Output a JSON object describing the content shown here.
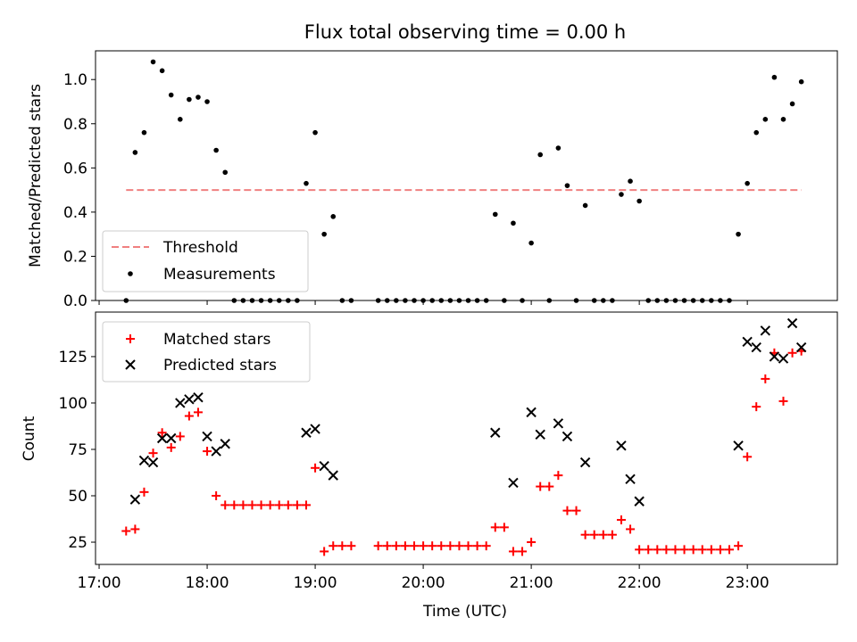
{
  "figure": {
    "title": "Flux total observing time = 0.00 h",
    "xlabel": "Time (UTC)"
  },
  "colors": {
    "threshold": "#f08080",
    "measurements": "#000000",
    "matched": "#ff0000",
    "predicted": "#000000"
  },
  "chart_data": [
    {
      "type": "scatter",
      "ylabel": "Matched/Predicted stars",
      "xlim": [
        "16:58",
        "23:50"
      ],
      "ylim": [
        0,
        1.13
      ],
      "x_ticks": [
        "17:00",
        "18:00",
        "19:00",
        "20:00",
        "21:00",
        "22:00",
        "23:00"
      ],
      "y_ticks": [
        "0.0",
        "0.2",
        "0.4",
        "0.6",
        "0.8",
        "1.0"
      ],
      "legend_position": "lower-left",
      "threshold": {
        "name": "Threshold",
        "y": 0.5,
        "x_start": "17:15",
        "x_end": "23:30"
      },
      "series": [
        {
          "name": "Measurements",
          "points": [
            [
              "17:15",
              0.0
            ],
            [
              "17:20",
              0.67
            ],
            [
              "17:25",
              0.76
            ],
            [
              "17:30",
              1.08
            ],
            [
              "17:35",
              1.04
            ],
            [
              "17:40",
              0.93
            ],
            [
              "17:45",
              0.82
            ],
            [
              "17:50",
              0.91
            ],
            [
              "17:55",
              0.92
            ],
            [
              "18:00",
              0.9
            ],
            [
              "18:05",
              0.68
            ],
            [
              "18:10",
              0.58
            ],
            [
              "18:15",
              0.0
            ],
            [
              "18:20",
              0.0
            ],
            [
              "18:25",
              0.0
            ],
            [
              "18:30",
              0.0
            ],
            [
              "18:35",
              0.0
            ],
            [
              "18:40",
              0.0
            ],
            [
              "18:45",
              0.0
            ],
            [
              "18:50",
              0.0
            ],
            [
              "18:55",
              0.53
            ],
            [
              "19:00",
              0.76
            ],
            [
              "19:05",
              0.3
            ],
            [
              "19:10",
              0.38
            ],
            [
              "19:15",
              0.0
            ],
            [
              "19:20",
              0.0
            ],
            [
              "19:35",
              0.0
            ],
            [
              "19:40",
              0.0
            ],
            [
              "19:45",
              0.0
            ],
            [
              "19:50",
              0.0
            ],
            [
              "19:55",
              0.0
            ],
            [
              "20:00",
              0.0
            ],
            [
              "20:05",
              0.0
            ],
            [
              "20:10",
              0.0
            ],
            [
              "20:15",
              0.0
            ],
            [
              "20:20",
              0.0
            ],
            [
              "20:25",
              0.0
            ],
            [
              "20:30",
              0.0
            ],
            [
              "20:35",
              0.0
            ],
            [
              "20:40",
              0.39
            ],
            [
              "20:45",
              0.0
            ],
            [
              "20:50",
              0.35
            ],
            [
              "20:55",
              0.0
            ],
            [
              "21:00",
              0.26
            ],
            [
              "21:05",
              0.66
            ],
            [
              "21:10",
              0.0
            ],
            [
              "21:15",
              0.69
            ],
            [
              "21:20",
              0.52
            ],
            [
              "21:25",
              0.0
            ],
            [
              "21:30",
              0.43
            ],
            [
              "21:35",
              0.0
            ],
            [
              "21:40",
              0.0
            ],
            [
              "21:45",
              0.0
            ],
            [
              "21:50",
              0.48
            ],
            [
              "21:55",
              0.54
            ],
            [
              "22:00",
              0.45
            ],
            [
              "22:05",
              0.0
            ],
            [
              "22:10",
              0.0
            ],
            [
              "22:15",
              0.0
            ],
            [
              "22:20",
              0.0
            ],
            [
              "22:25",
              0.0
            ],
            [
              "22:30",
              0.0
            ],
            [
              "22:35",
              0.0
            ],
            [
              "22:40",
              0.0
            ],
            [
              "22:45",
              0.0
            ],
            [
              "22:50",
              0.0
            ],
            [
              "22:55",
              0.3
            ],
            [
              "23:00",
              0.53
            ],
            [
              "23:05",
              0.76
            ],
            [
              "23:10",
              0.82
            ],
            [
              "23:15",
              1.01
            ],
            [
              "23:20",
              0.82
            ],
            [
              "23:25",
              0.89
            ],
            [
              "23:30",
              0.99
            ]
          ]
        }
      ]
    },
    {
      "type": "scatter",
      "ylabel": "Count",
      "xlim": [
        "16:58",
        "23:50"
      ],
      "ylim": [
        13,
        149
      ],
      "x_ticks": [
        "17:00",
        "18:00",
        "19:00",
        "20:00",
        "21:00",
        "22:00",
        "23:00"
      ],
      "y_ticks": [
        "25",
        "50",
        "75",
        "100",
        "125"
      ],
      "legend_position": "upper-left",
      "series": [
        {
          "name": "Matched stars",
          "marker": "+",
          "points": [
            [
              "17:15",
              31
            ],
            [
              "17:20",
              32
            ],
            [
              "17:25",
              52
            ],
            [
              "17:30",
              73
            ],
            [
              "17:35",
              84
            ],
            [
              "17:40",
              76
            ],
            [
              "17:45",
              82
            ],
            [
              "17:50",
              93
            ],
            [
              "17:55",
              95
            ],
            [
              "18:00",
              74
            ],
            [
              "18:05",
              50
            ],
            [
              "18:10",
              45
            ],
            [
              "18:15",
              45
            ],
            [
              "18:20",
              45
            ],
            [
              "18:25",
              45
            ],
            [
              "18:30",
              45
            ],
            [
              "18:35",
              45
            ],
            [
              "18:40",
              45
            ],
            [
              "18:45",
              45
            ],
            [
              "18:50",
              45
            ],
            [
              "18:55",
              45
            ],
            [
              "19:00",
              65
            ],
            [
              "19:05",
              20
            ],
            [
              "19:10",
              23
            ],
            [
              "19:15",
              23
            ],
            [
              "19:20",
              23
            ],
            [
              "19:35",
              23
            ],
            [
              "19:40",
              23
            ],
            [
              "19:45",
              23
            ],
            [
              "19:50",
              23
            ],
            [
              "19:55",
              23
            ],
            [
              "20:00",
              23
            ],
            [
              "20:05",
              23
            ],
            [
              "20:10",
              23
            ],
            [
              "20:15",
              23
            ],
            [
              "20:20",
              23
            ],
            [
              "20:25",
              23
            ],
            [
              "20:30",
              23
            ],
            [
              "20:35",
              23
            ],
            [
              "20:40",
              33
            ],
            [
              "20:45",
              33
            ],
            [
              "20:50",
              20
            ],
            [
              "20:55",
              20
            ],
            [
              "21:00",
              25
            ],
            [
              "21:05",
              55
            ],
            [
              "21:10",
              55
            ],
            [
              "21:15",
              61
            ],
            [
              "21:20",
              42
            ],
            [
              "21:25",
              42
            ],
            [
              "21:30",
              29
            ],
            [
              "21:35",
              29
            ],
            [
              "21:40",
              29
            ],
            [
              "21:45",
              29
            ],
            [
              "21:50",
              37
            ],
            [
              "21:55",
              32
            ],
            [
              "22:00",
              21
            ],
            [
              "22:05",
              21
            ],
            [
              "22:10",
              21
            ],
            [
              "22:15",
              21
            ],
            [
              "22:20",
              21
            ],
            [
              "22:25",
              21
            ],
            [
              "22:30",
              21
            ],
            [
              "22:35",
              21
            ],
            [
              "22:40",
              21
            ],
            [
              "22:45",
              21
            ],
            [
              "22:50",
              21
            ],
            [
              "22:55",
              23
            ],
            [
              "23:00",
              71
            ],
            [
              "23:05",
              98
            ],
            [
              "23:10",
              113
            ],
            [
              "23:15",
              127
            ],
            [
              "23:20",
              101
            ],
            [
              "23:25",
              127
            ],
            [
              "23:30",
              128
            ]
          ]
        },
        {
          "name": "Predicted stars",
          "marker": "x",
          "points": [
            [
              "17:20",
              48
            ],
            [
              "17:25",
              69
            ],
            [
              "17:30",
              68
            ],
            [
              "17:35",
              81
            ],
            [
              "17:40",
              81
            ],
            [
              "17:45",
              100
            ],
            [
              "17:50",
              102
            ],
            [
              "17:55",
              103
            ],
            [
              "18:00",
              82
            ],
            [
              "18:05",
              74
            ],
            [
              "18:10",
              78
            ],
            [
              "18:55",
              84
            ],
            [
              "19:00",
              86
            ],
            [
              "19:05",
              66
            ],
            [
              "19:10",
              61
            ],
            [
              "20:40",
              84
            ],
            [
              "20:50",
              57
            ],
            [
              "21:00",
              95
            ],
            [
              "21:05",
              83
            ],
            [
              "21:15",
              89
            ],
            [
              "21:20",
              82
            ],
            [
              "21:30",
              68
            ],
            [
              "21:50",
              77
            ],
            [
              "21:55",
              59
            ],
            [
              "22:00",
              47
            ],
            [
              "22:55",
              77
            ],
            [
              "23:00",
              133
            ],
            [
              "23:05",
              130
            ],
            [
              "23:10",
              139
            ],
            [
              "23:15",
              125
            ],
            [
              "23:20",
              124
            ],
            [
              "23:25",
              143
            ],
            [
              "23:30",
              130
            ]
          ]
        }
      ]
    }
  ]
}
